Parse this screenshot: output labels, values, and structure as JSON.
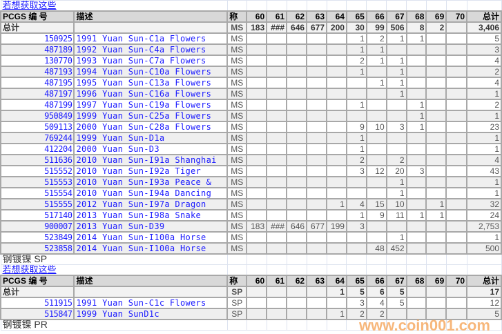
{
  "sections": [
    {
      "link": "若想获取这些",
      "header": {
        "id": "PCGS 编 号",
        "desc": "描述",
        "grade": "称",
        "cols": [
          "60",
          "61",
          "62",
          "63",
          "64",
          "65",
          "66",
          "67",
          "68",
          "69",
          "70"
        ],
        "total": "总计"
      },
      "totals": {
        "label": "总计",
        "grade": "MS",
        "cols": [
          "183",
          "###",
          "646",
          "677",
          "200",
          "30",
          "99",
          "506",
          "8",
          "2",
          ""
        ],
        "total": "3,406"
      },
      "rows": [
        {
          "id": "150925",
          "desc": "1991 Yuan Sun-C1a Flowers",
          "grade": "MS",
          "cols": [
            "",
            "",
            "",
            "",
            "",
            "1",
            "2",
            "1",
            "1",
            "",
            ""
          ],
          "total": "5"
        },
        {
          "id": "487189",
          "desc": "1992 Yuan Sun-C4a Flowers",
          "grade": "MS",
          "cols": [
            "",
            "",
            "",
            "",
            "",
            "1",
            "1",
            "",
            "",
            "",
            ""
          ],
          "total": "3"
        },
        {
          "id": "130770",
          "desc": "1993 Yuan Sun-C7a Flowers",
          "grade": "MS",
          "cols": [
            "",
            "",
            "",
            "",
            "",
            "2",
            "1",
            "1",
            "",
            "",
            ""
          ],
          "total": "4"
        },
        {
          "id": "487193",
          "desc": "1994 Yuan Sun-C10a Flowers",
          "grade": "MS",
          "cols": [
            "",
            "",
            "",
            "",
            "",
            "1",
            "",
            "1",
            "",
            "",
            ""
          ],
          "total": "2"
        },
        {
          "id": "487195",
          "desc": "1995 Yuan Sun-C13a Flowers",
          "grade": "MS",
          "cols": [
            "",
            "",
            "",
            "",
            "",
            "",
            "1",
            "1",
            "",
            "",
            ""
          ],
          "total": "4"
        },
        {
          "id": "487197",
          "desc": "1996 Yuan Sun-C16a Flowers",
          "grade": "MS",
          "cols": [
            "",
            "",
            "",
            "",
            "",
            "",
            "",
            "1",
            "",
            "",
            ""
          ],
          "total": "1"
        },
        {
          "id": "487199",
          "desc": "1997 Yuan Sun-C19a Flowers",
          "grade": "MS",
          "cols": [
            "",
            "",
            "",
            "",
            "",
            "1",
            "",
            "",
            "1",
            "",
            ""
          ],
          "total": "2"
        },
        {
          "id": "950849",
          "desc": "1999 Yuan Sun-C25a Flowers",
          "grade": "MS",
          "cols": [
            "",
            "",
            "",
            "",
            "",
            "",
            "",
            "",
            "1",
            "",
            ""
          ],
          "total": "1"
        },
        {
          "id": "509113",
          "desc": "2000 Yuan Sun-C28a Flowers",
          "grade": "MS",
          "cols": [
            "",
            "",
            "",
            "",
            "",
            "9",
            "10",
            "3",
            "1",
            "",
            ""
          ],
          "total": "23"
        },
        {
          "id": "769244",
          "desc": "1999 Yuan Sun-D1a",
          "grade": "MS",
          "cols": [
            "",
            "",
            "",
            "",
            "",
            "1",
            "",
            "",
            "",
            "",
            ""
          ],
          "total": "1"
        },
        {
          "id": "412204",
          "desc": "2000 Yuan Sun-D3",
          "grade": "MS",
          "cols": [
            "",
            "",
            "",
            "",
            "",
            "1",
            "",
            "",
            "",
            "",
            ""
          ],
          "total": "1"
        },
        {
          "id": "511636",
          "desc": "2010 Yuan Sun-I91a Shanghai",
          "grade": "MS",
          "cols": [
            "",
            "",
            "",
            "",
            "",
            "2",
            "",
            "2",
            "",
            "",
            ""
          ],
          "total": "4"
        },
        {
          "id": "515552",
          "desc": "2010 Yuan Sun-I92a Tiger",
          "grade": "MS",
          "cols": [
            "",
            "",
            "",
            "",
            "",
            "3",
            "12",
            "20",
            "3",
            "",
            ""
          ],
          "total": "43"
        },
        {
          "id": "515553",
          "desc": "2010 Yuan Sun-I93a Peace &",
          "grade": "MS",
          "cols": [
            "",
            "",
            "",
            "",
            "",
            "",
            "",
            "1",
            "",
            "",
            ""
          ],
          "total": "1"
        },
        {
          "id": "515554",
          "desc": "2010 Yuan Sun-I94a Dancing",
          "grade": "MS",
          "cols": [
            "",
            "",
            "",
            "",
            "",
            "",
            "",
            "1",
            "",
            "",
            ""
          ],
          "total": "1"
        },
        {
          "id": "515555",
          "desc": "2012 Yuan Sun-I97a Dragon",
          "grade": "MS",
          "cols": [
            "",
            "",
            "",
            "",
            "1",
            "4",
            "15",
            "10",
            "",
            "1",
            ""
          ],
          "total": "32"
        },
        {
          "id": "517140",
          "desc": "2013 Yuan Sun-I98a Snake",
          "grade": "MS",
          "cols": [
            "",
            "",
            "",
            "",
            "",
            "1",
            "9",
            "11",
            "1",
            "1",
            ""
          ],
          "total": "24"
        },
        {
          "id": "900007",
          "desc": "2013 Yuan Sun-D39",
          "grade": "MS",
          "cols": [
            "183",
            "###",
            "646",
            "677",
            "199",
            "3",
            "",
            "",
            "",
            "",
            ""
          ],
          "total": "2,753"
        },
        {
          "id": "523849",
          "desc": "2014 Yuan Sun-I100a Horse",
          "grade": "MS",
          "cols": [
            "",
            "",
            "",
            "",
            "",
            "",
            "",
            "1",
            "",
            "",
            ""
          ],
          "total": "1"
        },
        {
          "id": "523858",
          "desc": "2014 Yuan Sun-I100a Horse",
          "grade": "MS",
          "cols": [
            "",
            "",
            "",
            "",
            "",
            "",
            "48",
            "452",
            "",
            "",
            ""
          ],
          "total": "500"
        }
      ]
    },
    {
      "title": "钢镀镍  SP",
      "link": "若想获取这些",
      "header": {
        "id": "PCGS 编 号",
        "desc": "描述",
        "grade": "称",
        "cols": [
          "60",
          "61",
          "62",
          "63",
          "64",
          "65",
          "66",
          "67",
          "68",
          "69",
          "70"
        ],
        "total": "总计"
      },
      "totals": {
        "label": "总计",
        "grade": "SP",
        "cols": [
          "",
          "",
          "",
          "",
          "1",
          "5",
          "6",
          "5",
          "",
          "",
          ""
        ],
        "total": "17"
      },
      "rows": [
        {
          "id": "511915",
          "desc": "1991 Yuan Sun-C1c Flowers",
          "grade": "SP",
          "cols": [
            "",
            "",
            "",
            "",
            "",
            "3",
            "4",
            "5",
            "",
            "",
            ""
          ],
          "total": "12"
        },
        {
          "id": "515847",
          "desc": "1999 Yuan SunD1c",
          "grade": "SP",
          "cols": [
            "",
            "",
            "",
            "",
            "1",
            "2",
            "2",
            "",
            "",
            "",
            ""
          ],
          "total": "5"
        }
      ]
    }
  ],
  "footer_title": "钢镀镍  PR",
  "watermark": "www.coin001.com"
}
